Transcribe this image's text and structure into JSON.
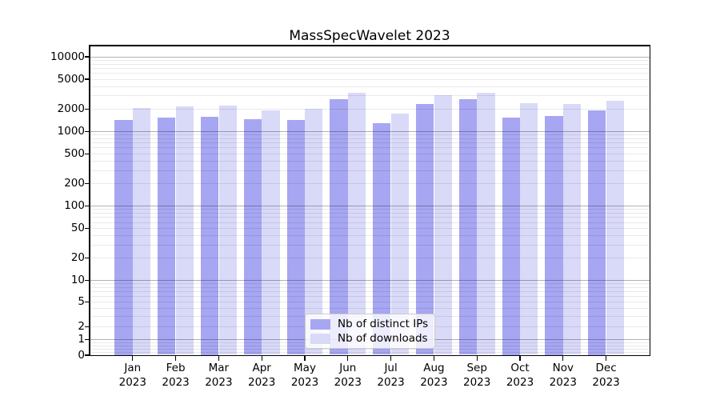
{
  "title": "MassSpecWavelet 2023",
  "chart_data": {
    "type": "bar",
    "title": "MassSpecWavelet 2023",
    "categories": [
      "Jan 2023",
      "Feb 2023",
      "Mar 2023",
      "Apr 2023",
      "May 2023",
      "Jun 2023",
      "Jul 2023",
      "Aug 2023",
      "Sep 2023",
      "Oct 2023",
      "Nov 2023",
      "Dec 2023"
    ],
    "series": [
      {
        "name": "Nb of distinct IPs",
        "color": "#a6a6f2",
        "values": [
          1420,
          1510,
          1570,
          1430,
          1390,
          2650,
          1280,
          2310,
          2690,
          1530,
          1610,
          1910
        ]
      },
      {
        "name": "Nb of downloads",
        "color": "#d9d9f8",
        "values": [
          2030,
          2160,
          2170,
          1900,
          1990,
          3240,
          1720,
          3040,
          3260,
          2340,
          2280,
          2530
        ]
      }
    ],
    "xlabel": "",
    "ylabel": "",
    "yscale": "pseudo-log (asinh, symlog-like)",
    "ytick_values": [
      0,
      1,
      2,
      5,
      10,
      20,
      50,
      100,
      200,
      500,
      1000,
      2000,
      5000,
      10000
    ],
    "ytick_labels": [
      "0",
      "1",
      "2",
      "5",
      "10",
      "20",
      "50",
      "100",
      "200",
      "500",
      "1000",
      "2000",
      "5000",
      "10000"
    ],
    "ylim": [
      0,
      13800
    ],
    "grid": "on (major dark at powers of 10, minor light at 2-9 per decade)",
    "legend_position": "lower center inside plot"
  },
  "legend": {
    "items": [
      {
        "label": "Nb of distinct IPs",
        "color": "#a6a6f2"
      },
      {
        "label": "Nb of downloads",
        "color": "#d9d9f8"
      }
    ]
  }
}
